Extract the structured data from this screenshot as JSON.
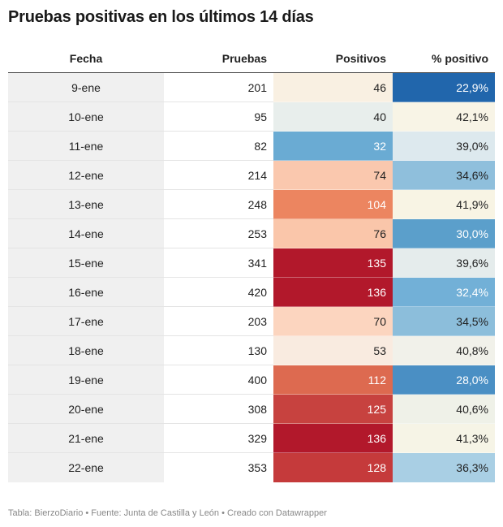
{
  "title": "Pruebas positivas en los últimos 14 días",
  "footer": "Tabla: BierzoDiario • Fuente: Junta de Castilla y León • Creado con Datawrapper",
  "chart_data": {
    "type": "table",
    "columns": [
      "Fecha",
      "Pruebas",
      "Positivos",
      "% positivo"
    ],
    "rows": [
      {
        "fecha": "9-ene",
        "pruebas": "201",
        "positivos": "46",
        "pct": "22,9%",
        "pos_bg": "#f9f0e2",
        "pos_fg": "#222222",
        "pct_bg": "#2166ac",
        "pct_fg": "#ffffff"
      },
      {
        "fecha": "10-ene",
        "pruebas": "95",
        "positivos": "40",
        "pct": "42,1%",
        "pos_bg": "#e8eeec",
        "pos_fg": "#222222",
        "pct_bg": "#f8f4e6",
        "pct_fg": "#222222"
      },
      {
        "fecha": "11-ene",
        "pruebas": "82",
        "positivos": "32",
        "pct": "39,0%",
        "pos_bg": "#6aabd3",
        "pos_fg": "#ffffff",
        "pct_bg": "#dde9ee",
        "pct_fg": "#222222"
      },
      {
        "fecha": "12-ene",
        "pruebas": "214",
        "positivos": "74",
        "pct": "34,6%",
        "pos_bg": "#fac8ae",
        "pos_fg": "#222222",
        "pct_bg": "#8fbfdc",
        "pct_fg": "#222222"
      },
      {
        "fecha": "13-ene",
        "pruebas": "248",
        "positivos": "104",
        "pct": "41,9%",
        "pos_bg": "#ec8560",
        "pos_fg": "#ffffff",
        "pct_bg": "#f8f4e4",
        "pct_fg": "#222222"
      },
      {
        "fecha": "14-ene",
        "pruebas": "253",
        "positivos": "76",
        "pct": "30,0%",
        "pos_bg": "#fac6aa",
        "pos_fg": "#222222",
        "pct_bg": "#5b9fcb",
        "pct_fg": "#ffffff"
      },
      {
        "fecha": "15-ene",
        "pruebas": "341",
        "positivos": "135",
        "pct": "39,6%",
        "pos_bg": "#b2182b",
        "pos_fg": "#ffffff",
        "pct_bg": "#e5ecec",
        "pct_fg": "#222222"
      },
      {
        "fecha": "16-ene",
        "pruebas": "420",
        "positivos": "136",
        "pct": "32,4%",
        "pos_bg": "#b2182b",
        "pos_fg": "#ffffff",
        "pct_bg": "#72b0d7",
        "pct_fg": "#ffffff"
      },
      {
        "fecha": "17-ene",
        "pruebas": "203",
        "positivos": "70",
        "pct": "34,5%",
        "pos_bg": "#fcd5bf",
        "pos_fg": "#222222",
        "pct_bg": "#8cbedb",
        "pct_fg": "#222222"
      },
      {
        "fecha": "18-ene",
        "pruebas": "130",
        "positivos": "53",
        "pct": "40,8%",
        "pos_bg": "#f9ebe0",
        "pos_fg": "#222222",
        "pct_bg": "#f1f1ea",
        "pct_fg": "#222222"
      },
      {
        "fecha": "19-ene",
        "pruebas": "400",
        "positivos": "112",
        "pct": "28,0%",
        "pos_bg": "#dd6a50",
        "pos_fg": "#ffffff",
        "pct_bg": "#4a8fc4",
        "pct_fg": "#ffffff"
      },
      {
        "fecha": "20-ene",
        "pruebas": "308",
        "positivos": "125",
        "pct": "40,6%",
        "pos_bg": "#c7423f",
        "pos_fg": "#ffffff",
        "pct_bg": "#eff1e8",
        "pct_fg": "#222222"
      },
      {
        "fecha": "21-ene",
        "pruebas": "329",
        "positivos": "136",
        "pct": "41,3%",
        "pos_bg": "#b2182b",
        "pos_fg": "#ffffff",
        "pct_bg": "#f6f4e6",
        "pct_fg": "#222222"
      },
      {
        "fecha": "22-ene",
        "pruebas": "353",
        "positivos": "128",
        "pct": "36,3%",
        "pos_bg": "#c53a3b",
        "pos_fg": "#ffffff",
        "pct_bg": "#a9cfe4",
        "pct_fg": "#222222"
      }
    ]
  }
}
